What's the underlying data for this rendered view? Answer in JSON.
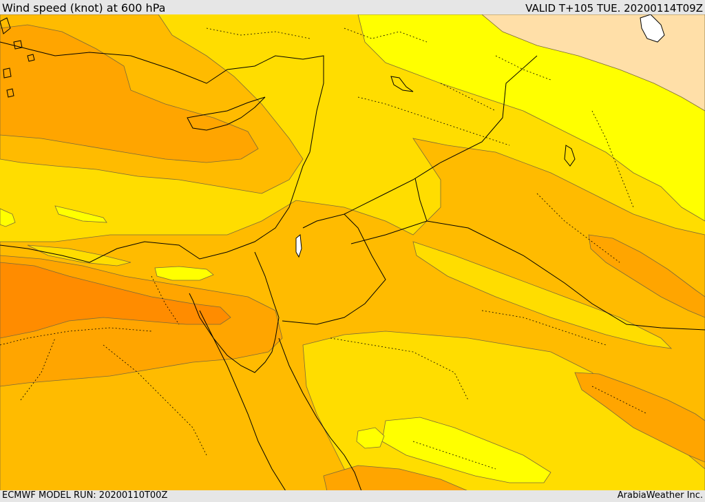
{
  "header": {
    "title": "Wind speed (knot) at 600 hPa",
    "valid": "VALID T+105 TUE. 20200114T09Z"
  },
  "footer": {
    "model_run": "ECMWF MODEL RUN: 20200110T00Z",
    "credit": "ArabiaWeather Inc."
  },
  "colors": {
    "band_pale": "#ffdfa8",
    "band_yellow": "#ffff00",
    "band_gold": "#ffdd00",
    "band_amber": "#ffbb00",
    "band_orange": "#ffa500",
    "band_deep_orange": "#ff8c00",
    "water": "#ffffff",
    "border": "#000000",
    "contour": "#7a6a3a"
  }
}
